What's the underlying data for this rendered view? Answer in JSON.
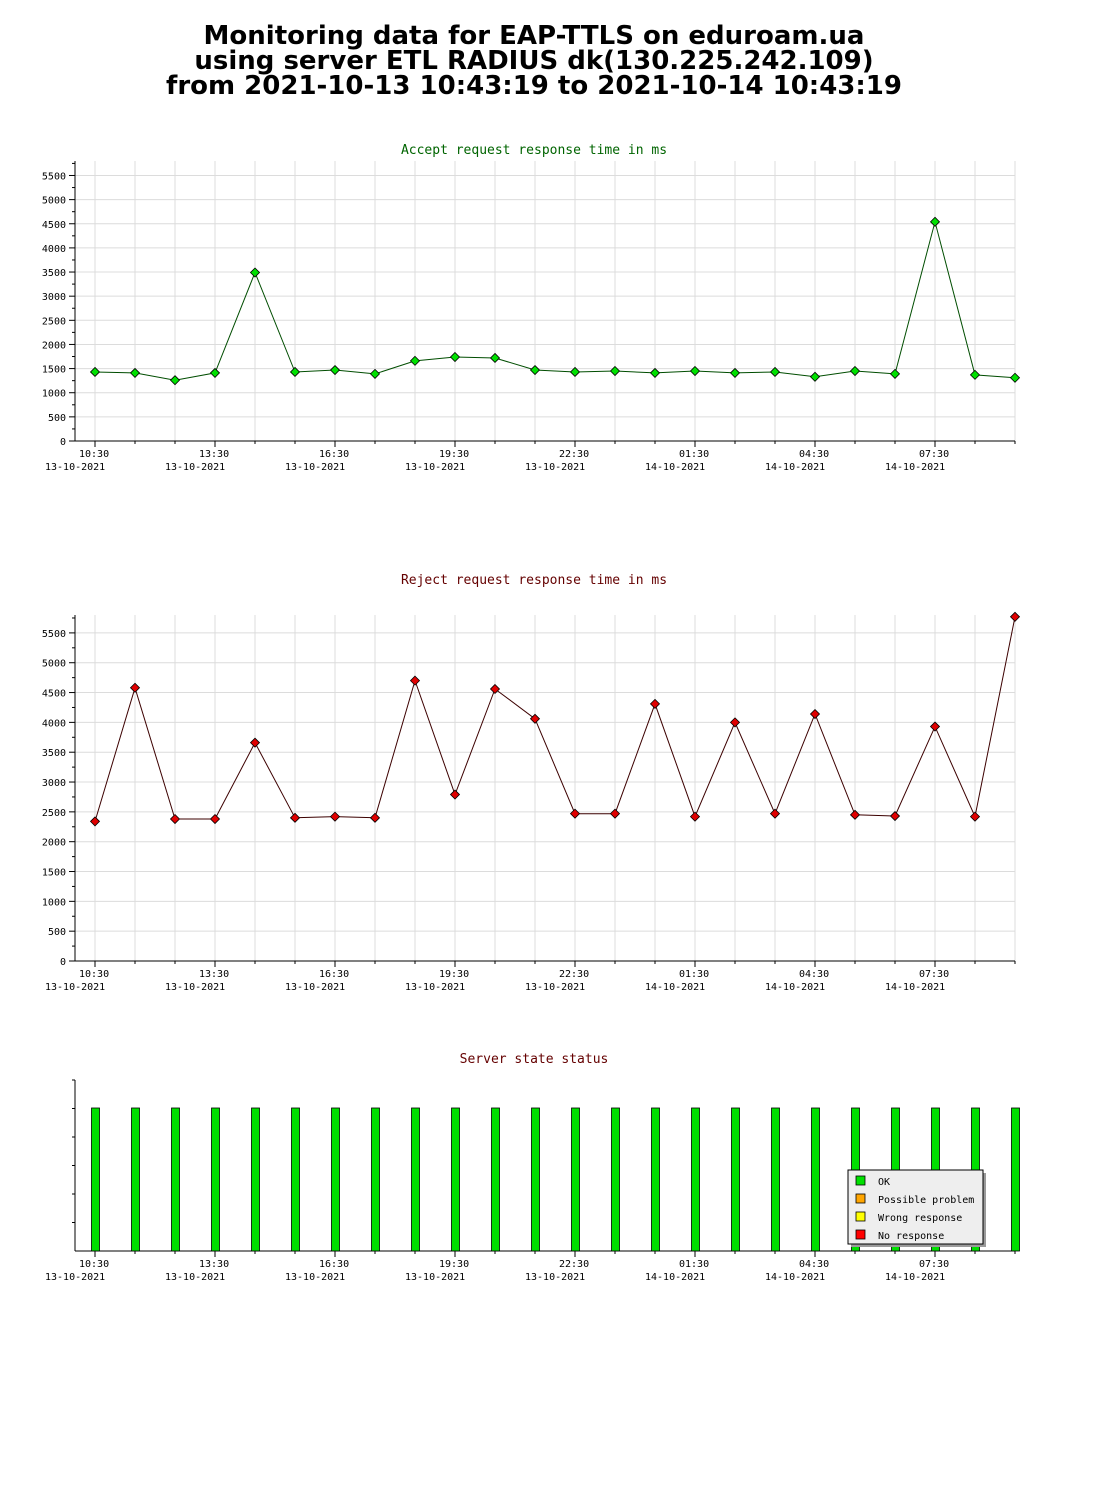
{
  "header": {
    "title_lines": [
      "Monitoring data for EAP-TTLS on eduroam.ua",
      "using server ETL RADIUS dk(130.225.242.109)",
      "from 2021-10-13 10:43:19 to 2021-10-14 10:43:19"
    ]
  },
  "colors": {
    "grid": "#dcdcdc",
    "accept_title": "#006400",
    "reject_title": "#640000",
    "status_title": "#640000",
    "accept_line": "#004d00",
    "accept_marker": "#00e000",
    "reject_line": "#3c0000",
    "reject_marker": "#e00000",
    "ok": "#00e000",
    "possible_problem": "#ffa500",
    "wrong_response": "#ffff00",
    "no_response": "#ff0000"
  },
  "chart_data": [
    {
      "type": "line",
      "title": "Accept request response time in ms",
      "xlabel": "",
      "ylabel": "",
      "ylim": [
        0,
        5800
      ],
      "yticks": [
        0,
        500,
        1000,
        1500,
        2000,
        2500,
        3000,
        3500,
        4000,
        4500,
        5000,
        5500
      ],
      "xticks": [
        {
          "time": "10:30",
          "date": "13-10-2021"
        },
        {
          "time": "13:30",
          "date": "13-10-2021"
        },
        {
          "time": "16:30",
          "date": "13-10-2021"
        },
        {
          "time": "19:30",
          "date": "13-10-2021"
        },
        {
          "time": "22:30",
          "date": "13-10-2021"
        },
        {
          "time": "01:30",
          "date": "14-10-2021"
        },
        {
          "time": "04:30",
          "date": "14-10-2021"
        },
        {
          "time": "07:30",
          "date": "14-10-2021"
        }
      ],
      "grid": true,
      "values": [
        1430,
        1410,
        1260,
        1410,
        3490,
        1430,
        1470,
        1390,
        1660,
        1740,
        1720,
        1470,
        1430,
        1450,
        1410,
        1450,
        1410,
        1430,
        1330,
        1450,
        1390,
        4540,
        1370,
        1310
      ]
    },
    {
      "type": "line",
      "title": "Reject request response time in ms",
      "xlabel": "",
      "ylabel": "",
      "ylim": [
        0,
        5800
      ],
      "yticks": [
        0,
        500,
        1000,
        1500,
        2000,
        2500,
        3000,
        3500,
        4000,
        4500,
        5000,
        5500
      ],
      "xticks": [
        {
          "time": "10:30",
          "date": "13-10-2021"
        },
        {
          "time": "13:30",
          "date": "13-10-2021"
        },
        {
          "time": "16:30",
          "date": "13-10-2021"
        },
        {
          "time": "19:30",
          "date": "13-10-2021"
        },
        {
          "time": "22:30",
          "date": "13-10-2021"
        },
        {
          "time": "01:30",
          "date": "14-10-2021"
        },
        {
          "time": "04:30",
          "date": "14-10-2021"
        },
        {
          "time": "07:30",
          "date": "14-10-2021"
        }
      ],
      "grid": true,
      "values": [
        2340,
        4580,
        2380,
        2380,
        3660,
        2400,
        2420,
        2400,
        4700,
        2790,
        4560,
        4060,
        2470,
        2470,
        4310,
        2420,
        4000,
        2470,
        4140,
        2450,
        2430,
        3930,
        2420,
        5770
      ]
    },
    {
      "type": "bar",
      "title": "Server state status",
      "xlabel": "",
      "ylabel": "",
      "xticks": [
        {
          "time": "10:30",
          "date": "13-10-2021"
        },
        {
          "time": "13:30",
          "date": "13-10-2021"
        },
        {
          "time": "16:30",
          "date": "13-10-2021"
        },
        {
          "time": "19:30",
          "date": "13-10-2021"
        },
        {
          "time": "22:30",
          "date": "13-10-2021"
        },
        {
          "time": "01:30",
          "date": "14-10-2021"
        },
        {
          "time": "04:30",
          "date": "14-10-2021"
        },
        {
          "time": "07:30",
          "date": "14-10-2021"
        }
      ],
      "grid": false,
      "legend_position": "bottom-right",
      "legend": [
        {
          "label": "OK",
          "color": "#00e000"
        },
        {
          "label": "Possible problem",
          "color": "#ffa500"
        },
        {
          "label": "Wrong response",
          "color": "#ffff00"
        },
        {
          "label": "No response",
          "color": "#ff0000"
        }
      ],
      "states": [
        "OK",
        "OK",
        "OK",
        "OK",
        "OK",
        "OK",
        "OK",
        "OK",
        "OK",
        "OK",
        "OK",
        "OK",
        "OK",
        "OK",
        "OK",
        "OK",
        "OK",
        "OK",
        "OK",
        "OK",
        "OK",
        "OK",
        "OK",
        "OK"
      ]
    }
  ]
}
